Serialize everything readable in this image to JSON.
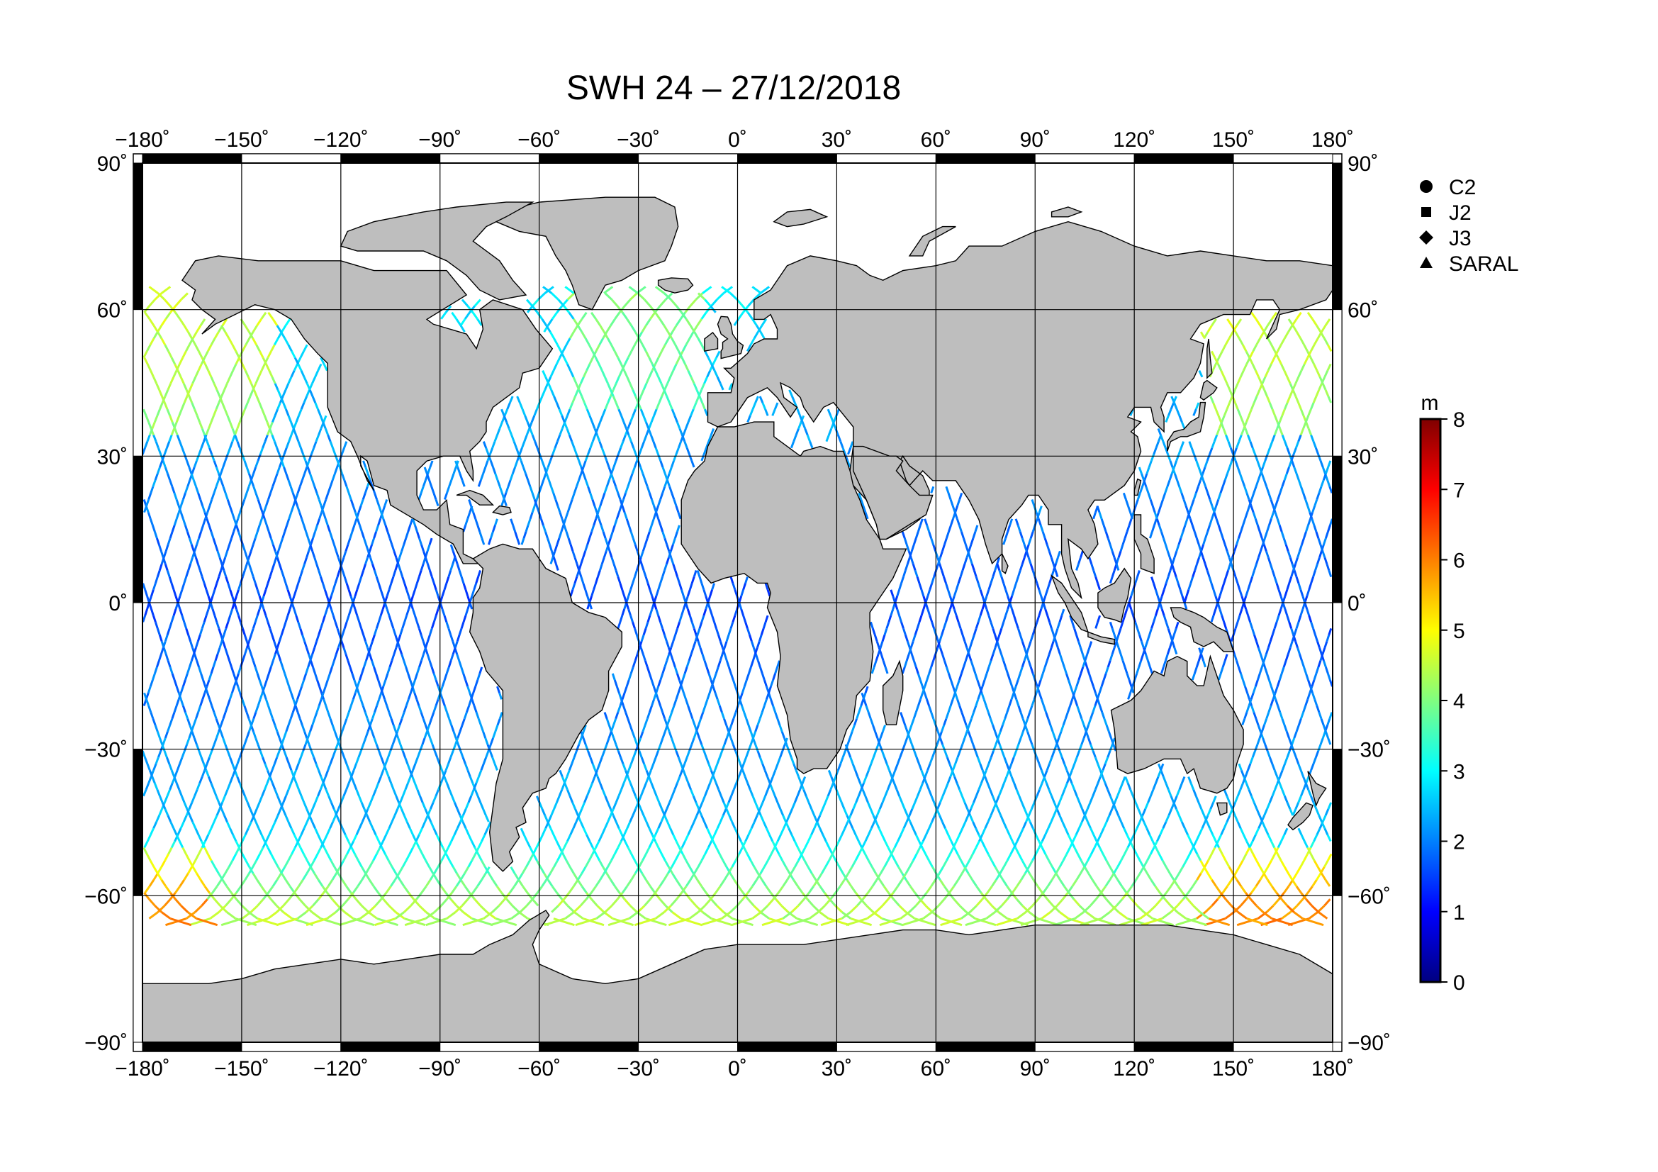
{
  "title": "SWH 24 – 27/12/2018",
  "lon_ticks": [
    "−180˚",
    "−150˚",
    "−120˚",
    "−90˚",
    "−60˚",
    "−30˚",
    "0˚",
    "30˚",
    "60˚",
    "90˚",
    "120˚",
    "150˚",
    "180˚"
  ],
  "lat_ticks": [
    "90˚",
    "60˚",
    "30˚",
    "0˚",
    "−30˚",
    "−60˚",
    "−90˚"
  ],
  "legend": {
    "items": [
      {
        "label": "C2",
        "symbol": "circle"
      },
      {
        "label": "J2",
        "symbol": "square"
      },
      {
        "label": "J3",
        "symbol": "diamond"
      },
      {
        "label": "SARAL",
        "symbol": "triangle"
      }
    ]
  },
  "colorbar": {
    "unit": "m",
    "min": 0,
    "max": 8,
    "ticks": [
      "0",
      "1",
      "2",
      "3",
      "4",
      "5",
      "6",
      "7",
      "8"
    ],
    "colors": [
      "#000080",
      "#0000ff",
      "#0080ff",
      "#00ffff",
      "#80ff80",
      "#ffff00",
      "#ff8000",
      "#ff0000",
      "#800000"
    ]
  },
  "colors": {
    "land": "#bebebe",
    "ocean": "#ffffff",
    "grid": "#000000"
  },
  "map": {
    "projection": "equirectangular",
    "lon_range": [
      -180,
      180
    ],
    "lat_range": [
      -90,
      90
    ]
  }
}
